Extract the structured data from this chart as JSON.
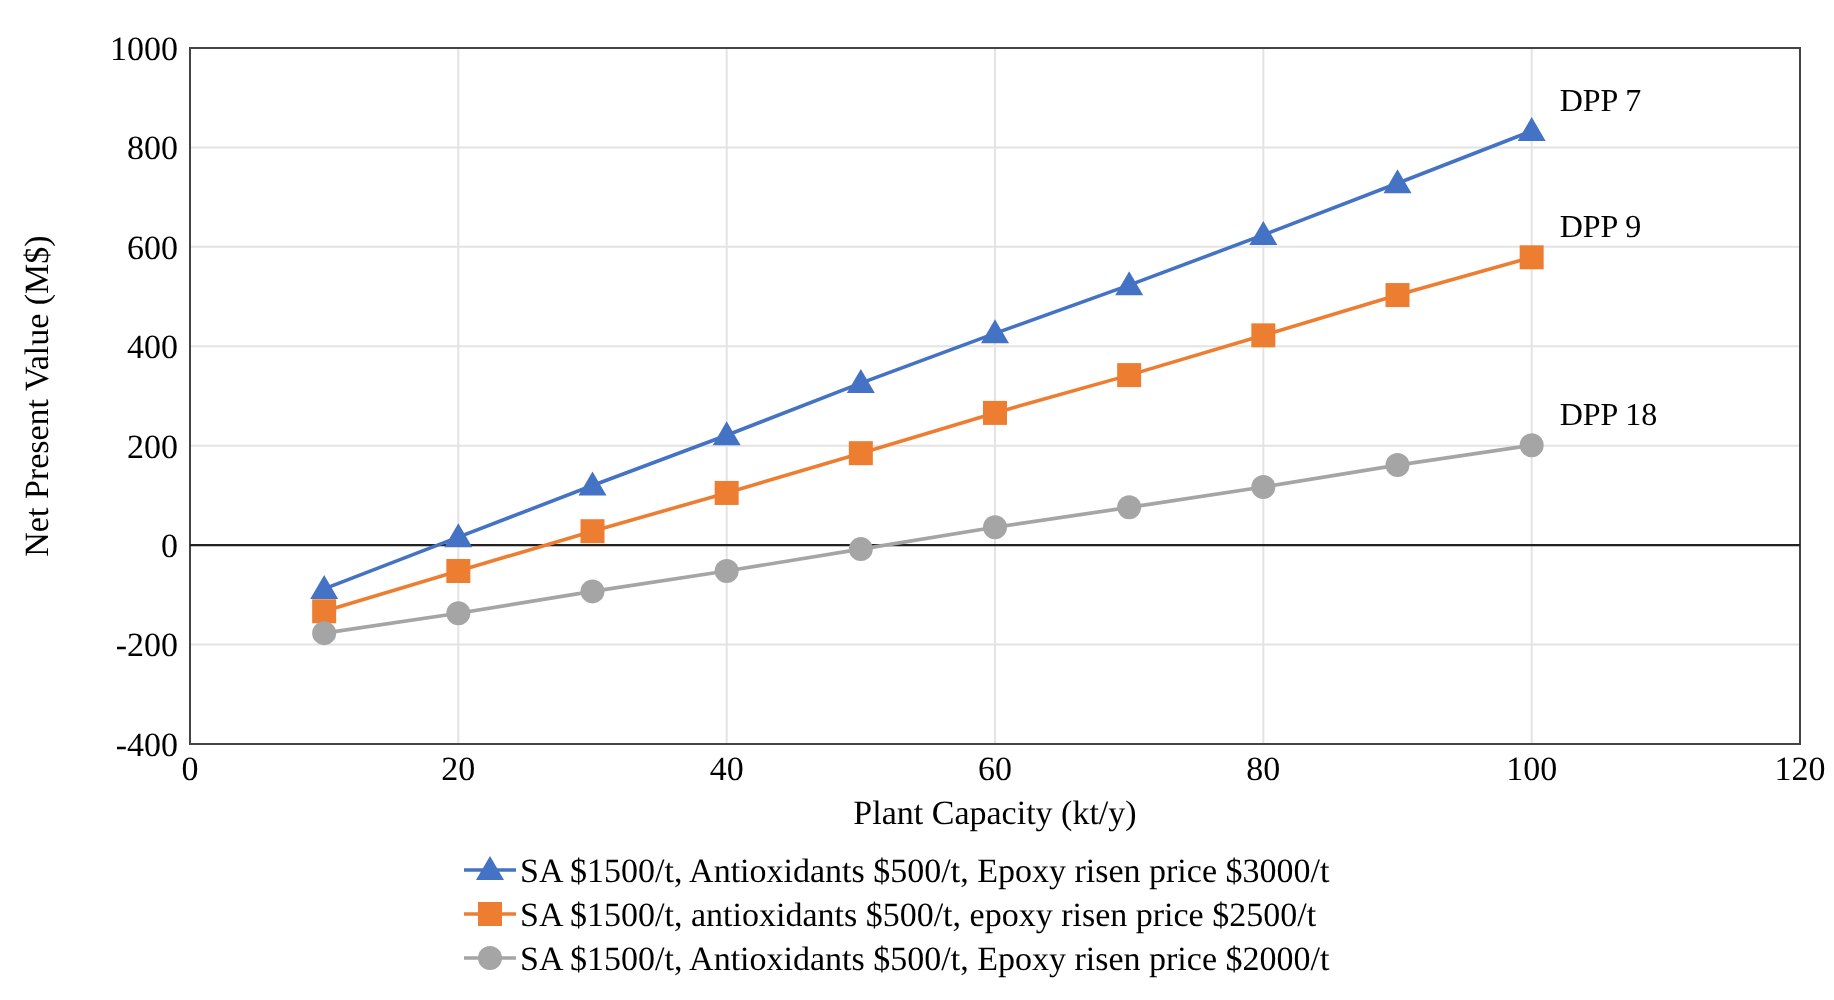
{
  "chart_data": {
    "type": "line",
    "xlabel": "Plant Capacity (kt/y)",
    "ylabel": "Net Present Value (M$)",
    "x": [
      10,
      20,
      30,
      40,
      50,
      60,
      70,
      80,
      90,
      100
    ],
    "series": [
      {
        "name": "SA $1500/t, Antioxidants $500/t, Epoxy risen price $3000/t",
        "color": "#4472c4",
        "marker": "triangle",
        "values": [
          -88,
          16,
          120,
          221,
          326,
          426,
          523,
          624,
          728,
          833
        ]
      },
      {
        "name": "SA $1500/t, antioxidants $500/t, epoxy risen price $2500/t",
        "color": "#ed7d31",
        "marker": "square",
        "values": [
          -133,
          -52,
          28,
          105,
          185,
          266,
          342,
          422,
          503,
          579
        ]
      },
      {
        "name": "SA $1500/t, Antioxidants $500/t, Epoxy risen price $2000/t",
        "color": "#a5a5a5",
        "marker": "circle",
        "values": [
          -177,
          -137,
          -93,
          -52,
          -8,
          36,
          76,
          117,
          161,
          201
        ]
      }
    ],
    "annotations": [
      "DPP 7",
      "DPP 9",
      "DPP 18"
    ],
    "xlim": [
      0,
      120
    ],
    "xticks": [
      0,
      20,
      40,
      60,
      80,
      100,
      120
    ],
    "ylim": [
      -400,
      1000
    ],
    "yticks": [
      -400,
      -200,
      0,
      200,
      400,
      600,
      800,
      1000
    ],
    "grid": true,
    "legend": "bottom",
    "line_style": "solid"
  }
}
